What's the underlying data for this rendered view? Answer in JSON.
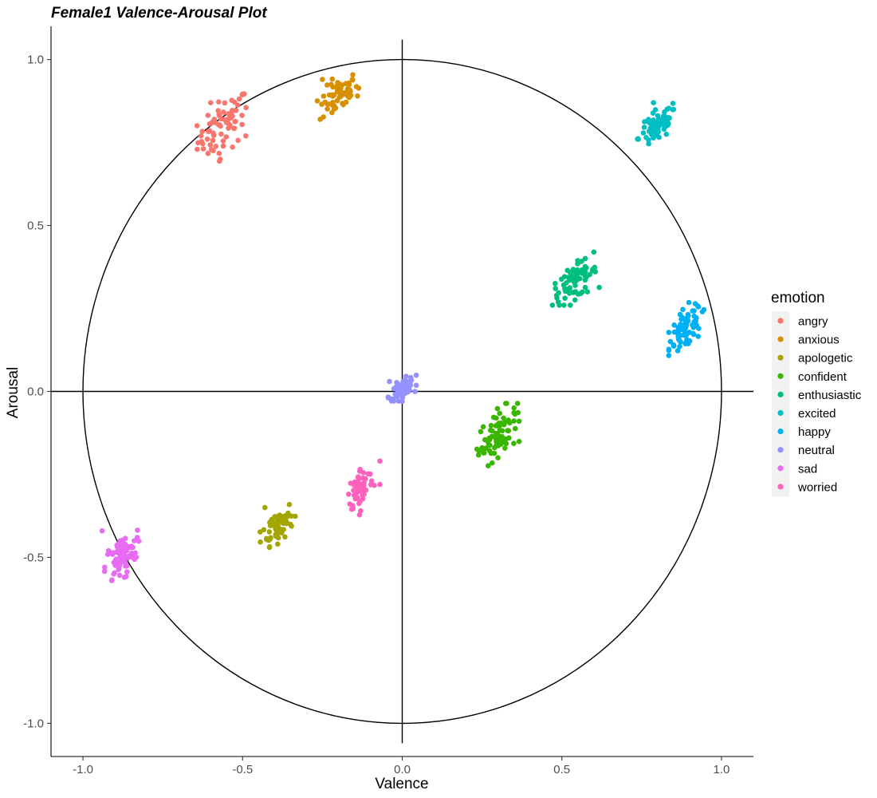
{
  "chart_data": {
    "type": "scatter",
    "title": "Female1 Valence-Arousal Plot",
    "xlabel": "Valence",
    "ylabel": "Arousal",
    "xlim": [
      -1.1,
      1.1
    ],
    "ylim": [
      -1.1,
      1.1
    ],
    "x_ticks": [
      -1.0,
      -0.5,
      0.0,
      0.5,
      1.0
    ],
    "y_ticks": [
      -1.0,
      -0.5,
      0.0,
      0.5,
      1.0
    ],
    "x_tick_labels": [
      "-1.0",
      "-0.5",
      "0.0",
      "0.5",
      "1.0"
    ],
    "y_tick_labels": [
      "-1.0",
      "-0.5",
      "0.0",
      "0.5",
      "1.0"
    ],
    "grid": false,
    "reference_lines": {
      "horizontal": 0,
      "vertical": 0
    },
    "reference_circle_radius": 1.0,
    "legend": {
      "title": "emotion",
      "position": "right"
    },
    "series": [
      {
        "name": "angry",
        "color": "#F8766D",
        "center": [
          -0.56,
          0.8
        ],
        "spread": [
          0.04,
          0.04
        ],
        "n": 70,
        "points": [
          [
            -0.6,
            0.87
          ],
          [
            -0.57,
            0.7
          ],
          [
            -0.49,
            0.77
          ],
          [
            -0.63,
            0.77
          ]
        ]
      },
      {
        "name": "anxious",
        "color": "#D89000",
        "center": [
          -0.2,
          0.89
        ],
        "spread": [
          0.03,
          0.025
        ],
        "n": 60,
        "points": [
          [
            -0.25,
            0.94
          ],
          [
            -0.14,
            0.89
          ],
          [
            -0.22,
            0.84
          ]
        ]
      },
      {
        "name": "apologetic",
        "color": "#A3A500",
        "center": [
          -0.39,
          -0.4
        ],
        "spread": [
          0.025,
          0.025
        ],
        "n": 60,
        "points": [
          [
            -0.43,
            -0.35
          ],
          [
            -0.35,
            -0.4
          ],
          [
            -0.39,
            -0.46
          ]
        ]
      },
      {
        "name": "confident",
        "color": "#39B600",
        "center": [
          0.3,
          -0.13
        ],
        "spread": [
          0.03,
          0.035
        ],
        "n": 80,
        "points": [
          [
            0.35,
            -0.05
          ],
          [
            0.25,
            -0.17
          ],
          [
            0.3,
            -0.2
          ]
        ]
      },
      {
        "name": "enthusiastic",
        "color": "#00BF7D",
        "center": [
          0.54,
          0.33
        ],
        "spread": [
          0.035,
          0.025
        ],
        "n": 70,
        "points": [
          [
            0.6,
            0.42
          ],
          [
            0.48,
            0.31
          ],
          [
            0.58,
            0.3
          ]
        ]
      },
      {
        "name": "excited",
        "color": "#00BFC4",
        "center": [
          0.8,
          0.8
        ],
        "spread": [
          0.03,
          0.025
        ],
        "n": 70,
        "points": [
          [
            0.74,
            0.76
          ],
          [
            0.85,
            0.85
          ],
          [
            0.82,
            0.79
          ]
        ]
      },
      {
        "name": "happy",
        "color": "#00B0F6",
        "center": [
          0.89,
          0.19
        ],
        "spread": [
          0.025,
          0.03
        ],
        "n": 70,
        "points": [
          [
            0.85,
            0.14
          ],
          [
            0.94,
            0.24
          ],
          [
            0.84,
            0.15
          ]
        ]
      },
      {
        "name": "neutral",
        "color": "#9590FF",
        "center": [
          0.0,
          0.01
        ],
        "spread": [
          0.02,
          0.012
        ],
        "n": 60,
        "points": [
          [
            -0.04,
            0.03
          ],
          [
            0.04,
            0.0
          ],
          [
            0.0,
            -0.03
          ]
        ]
      },
      {
        "name": "sad",
        "color": "#E76BF3",
        "center": [
          -0.88,
          -0.5
        ],
        "spread": [
          0.025,
          0.03
        ],
        "n": 80,
        "points": [
          [
            -0.94,
            -0.42
          ],
          [
            -0.83,
            -0.44
          ],
          [
            -0.91,
            -0.57
          ],
          [
            -0.87,
            -0.56
          ]
        ]
      },
      {
        "name": "worried",
        "color": "#FF62BC",
        "center": [
          -0.13,
          -0.29
        ],
        "spread": [
          0.02,
          0.03
        ],
        "n": 60,
        "points": [
          [
            -0.07,
            -0.21
          ],
          [
            -0.13,
            -0.36
          ],
          [
            -0.07,
            -0.28
          ]
        ]
      }
    ]
  }
}
